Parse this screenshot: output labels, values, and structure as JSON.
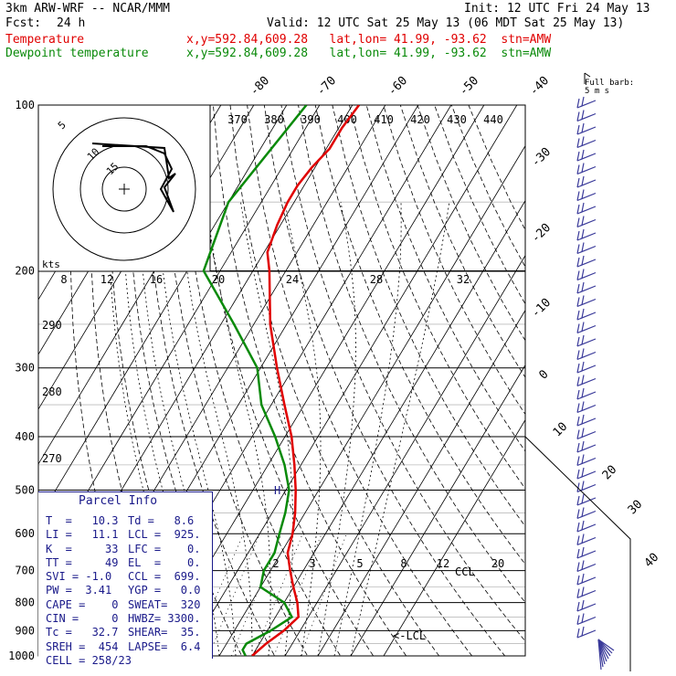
{
  "header": {
    "model": "3km ARW-WRF -- NCAR/MMM",
    "init": "Init: 12 UTC Fri 24 May 13",
    "fcst_label": "Fcst:",
    "fcst_value": "24 h",
    "valid": "Valid: 12 UTC Sat 25 May 13 (06 MDT Sat 25 May 13)",
    "temp_label": "Temperature",
    "dew_label": "Dewpoint temperature",
    "location": "x,y=592.84,609.28   lat,lon= 41.99, -93.62  stn=AMW"
  },
  "colors": {
    "temperature": "#e00000",
    "dewpoint": "#0a8a0a",
    "barbs": "#3a3a9a"
  },
  "chart_data": {
    "type": "line",
    "pressure_ticks": [
      "100",
      "200",
      "300",
      "400",
      "500",
      "600",
      "700",
      "800",
      "900",
      "1000"
    ],
    "isotherm_labels": [
      "-80",
      "-70",
      "-60",
      "-50",
      "-40",
      "-30",
      "-20",
      "-10",
      "0",
      "10",
      "20",
      "30",
      "40"
    ],
    "theta_labels": [
      "370",
      "380",
      "390",
      "400",
      "410",
      "420",
      "430",
      "440"
    ],
    "mixing_ratio_labels": [
      "2",
      "3",
      "5",
      "8",
      "12",
      "20"
    ],
    "hodo_speed_labels": [
      "8",
      "12",
      "16",
      "20",
      "24",
      "28",
      "32"
    ],
    "hodo_units": "kts",
    "hodo_rings": [
      "5",
      "10",
      "15"
    ],
    "barb_units": "Full barb:\n5 m s",
    "moist_adiabat_labels": [
      "290",
      "280",
      "270"
    ],
    "level_labels": [
      "CCL",
      "LCL"
    ],
    "temperature": [
      {
        "p": 100,
        "t": -58
      },
      {
        "p": 110,
        "t": -59
      },
      {
        "p": 120,
        "t": -59
      },
      {
        "p": 130,
        "t": -61
      },
      {
        "p": 140,
        "t": -62
      },
      {
        "p": 150,
        "t": -62
      },
      {
        "p": 165,
        "t": -61
      },
      {
        "p": 185,
        "t": -59
      },
      {
        "p": 200,
        "t": -55
      },
      {
        "p": 250,
        "t": -45
      },
      {
        "p": 300,
        "t": -35
      },
      {
        "p": 350,
        "t": -26
      },
      {
        "p": 400,
        "t": -18
      },
      {
        "p": 450,
        "t": -12
      },
      {
        "p": 500,
        "t": -7
      },
      {
        "p": 550,
        "t": -3
      },
      {
        "p": 600,
        "t": 0
      },
      {
        "p": 650,
        "t": 2
      },
      {
        "p": 700,
        "t": 6
      },
      {
        "p": 750,
        "t": 10
      },
      {
        "p": 800,
        "t": 14
      },
      {
        "p": 850,
        "t": 17
      },
      {
        "p": 900,
        "t": 15
      },
      {
        "p": 950,
        "t": 12
      },
      {
        "p": 1000,
        "t": 10
      }
    ],
    "dewpoint": [
      {
        "p": 100,
        "t": -74
      },
      {
        "p": 150,
        "t": -80
      },
      {
        "p": 200,
        "t": -75
      },
      {
        "p": 250,
        "t": -56
      },
      {
        "p": 300,
        "t": -41
      },
      {
        "p": 350,
        "t": -33
      },
      {
        "p": 400,
        "t": -23
      },
      {
        "p": 450,
        "t": -15
      },
      {
        "p": 500,
        "t": -9
      },
      {
        "p": 550,
        "t": -6
      },
      {
        "p": 600,
        "t": -4
      },
      {
        "p": 650,
        "t": -2
      },
      {
        "p": 700,
        "t": -2
      },
      {
        "p": 750,
        "t": 0
      },
      {
        "p": 800,
        "t": 10
      },
      {
        "p": 850,
        "t": 15
      },
      {
        "p": 900,
        "t": 11
      },
      {
        "p": 950,
        "t": 6
      },
      {
        "p": 975,
        "t": 6
      },
      {
        "p": 1000,
        "t": 8
      }
    ]
  },
  "parcel": {
    "title": "Parcel Info",
    "rows": [
      [
        "T  =   10.3",
        "Td =   8.6"
      ],
      [
        "LI =   11.1",
        "LCL =  925."
      ],
      [
        "K  =     33",
        "LFC =    0."
      ],
      [
        "TT =     49",
        "EL  =    0."
      ],
      [
        "SVI = -1.0",
        "CCL =  699."
      ],
      [
        "PW =  3.41",
        "YGP =   0.0"
      ],
      [
        "CAPE =    0",
        "SWEAT=  320"
      ],
      [
        "CIN =     0",
        "HWBZ= 3300."
      ],
      [
        "Tc =   32.7",
        "SHEAR=  35."
      ],
      [
        "SREH =  454",
        "LAPSE=  6.4"
      ],
      [
        "CELL = 258/23",
        ""
      ]
    ]
  }
}
